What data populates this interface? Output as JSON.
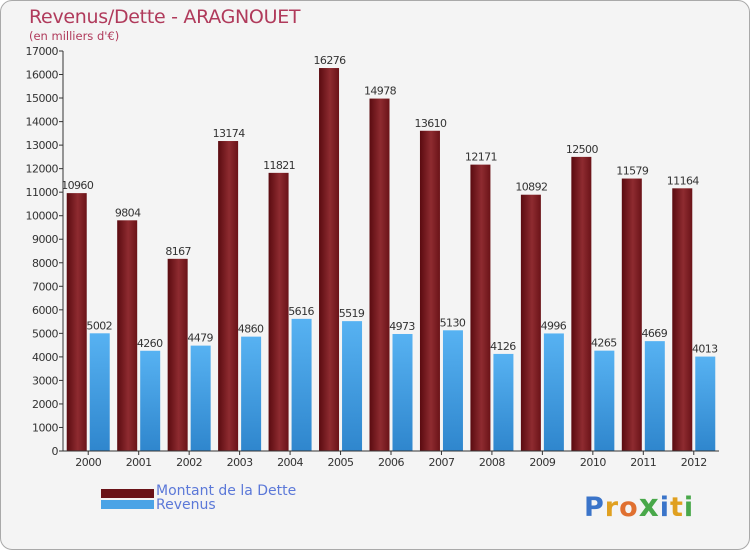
{
  "chart_data": {
    "type": "bar",
    "title": "Revenus/Dette - ARAGNOUET",
    "subtitle": "(en milliers d'€)",
    "categories": [
      "2000",
      "2001",
      "2002",
      "2003",
      "2004",
      "2005",
      "2006",
      "2007",
      "2008",
      "2009",
      "2010",
      "2011",
      "2012"
    ],
    "series": [
      {
        "name": "Montant de la Dette",
        "color": "#7a1f24",
        "values": [
          10960,
          9804,
          8167,
          13174,
          11821,
          16276,
          14978,
          13610,
          12171,
          10892,
          12500,
          11579,
          11164
        ]
      },
      {
        "name": "Revenus",
        "color": "#4aa3e6",
        "values": [
          5002,
          4260,
          4479,
          4860,
          5616,
          5519,
          4973,
          5130,
          4126,
          4996,
          4265,
          4669,
          4013
        ]
      }
    ],
    "ylim": [
      0,
      17000
    ],
    "yticks": [
      0,
      1000,
      2000,
      3000,
      4000,
      5000,
      6000,
      7000,
      8000,
      9000,
      10000,
      11000,
      12000,
      13000,
      14000,
      15000,
      16000,
      17000
    ],
    "grid": false,
    "legend_position": "bottom-left"
  },
  "logo": {
    "text": "Proxiti",
    "letter_colors": [
      "#3a74c9",
      "#e0a020",
      "#e07030",
      "#49a84a",
      "#3a74c9",
      "#e0a020",
      "#49a84a"
    ]
  }
}
